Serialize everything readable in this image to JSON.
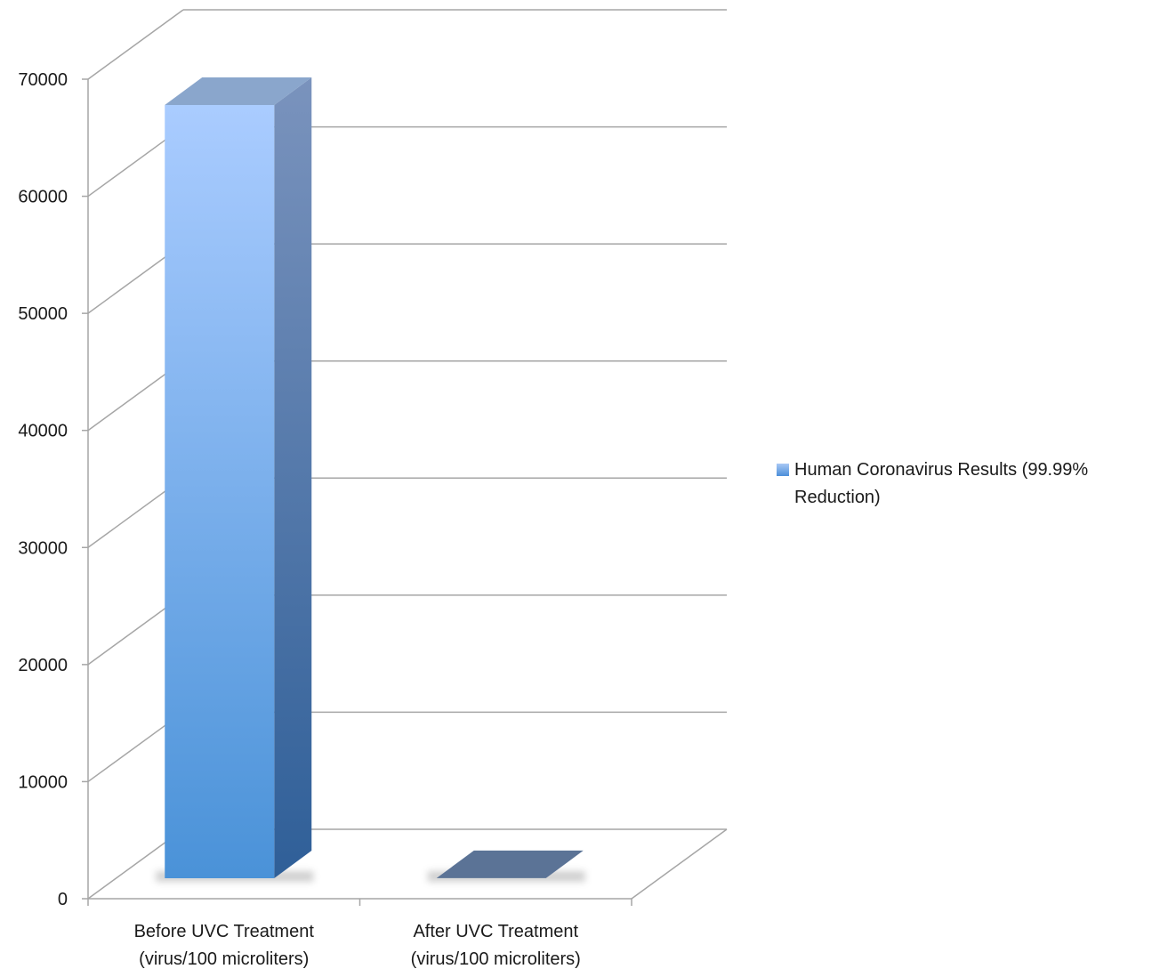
{
  "chart_data": {
    "type": "bar",
    "style": "3d-column",
    "categories": [
      "Before UVC Treatment\n(virus/100 microliters)",
      "After UVC Treatment\n(virus/100 microliters)"
    ],
    "series": [
      {
        "name": "Human Coronavirus Results (99.99% Reduction)",
        "values": [
          66000,
          6.6
        ],
        "color": "#5a9ae0"
      }
    ],
    "ylim": [
      0,
      70000
    ],
    "yticks": [
      0,
      10000,
      20000,
      30000,
      40000,
      50000,
      60000,
      70000
    ],
    "grid": true,
    "legend_position": "right",
    "title": "",
    "xlabel": "",
    "ylabel": ""
  },
  "legend": {
    "label": "Human Coronavirus Results (99.99% Reduction)"
  }
}
